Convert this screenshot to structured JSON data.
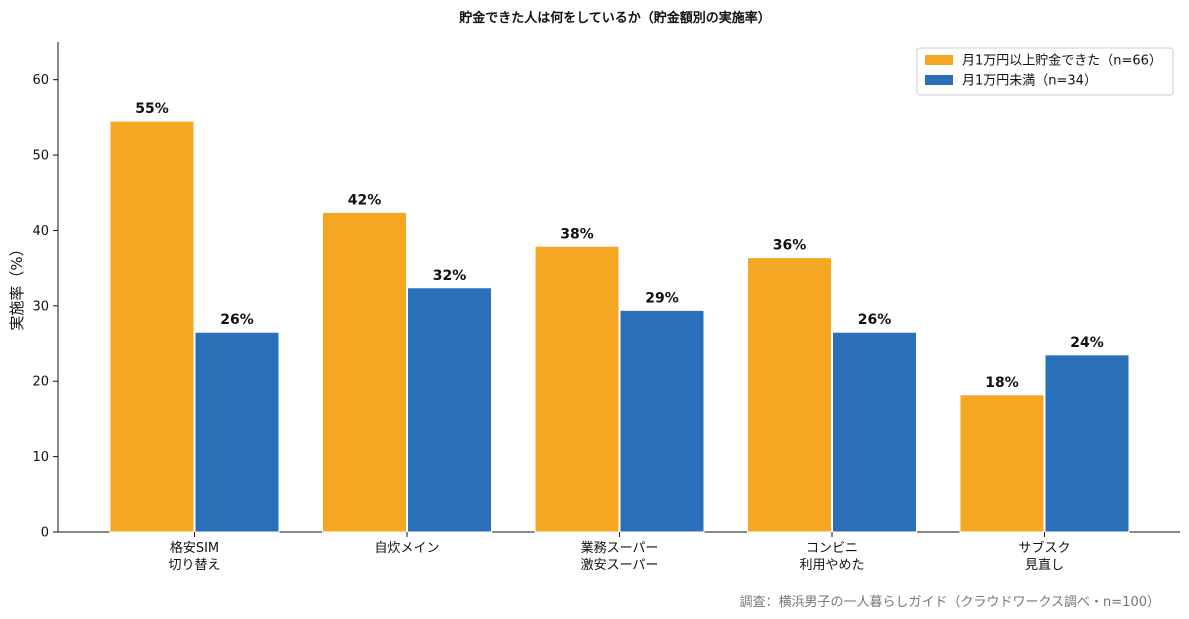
{
  "chart_data": {
    "type": "bar",
    "title": "貯金できた人は何をしているか（貯金額別の実施率）",
    "ylabel": "実施率（%）",
    "xlabel": "",
    "ylim": [
      0,
      65
    ],
    "yticks": [
      0,
      10,
      20,
      30,
      40,
      50,
      60
    ],
    "grid": false,
    "legend_position": "top-right",
    "categories": [
      [
        "格安SIM",
        "切り替え"
      ],
      [
        "自炊メイン"
      ],
      [
        "業務スーパー",
        "激安スーパー"
      ],
      [
        "コンビニ",
        "利用やめた"
      ],
      [
        "サブスク",
        "見直し"
      ]
    ],
    "series": [
      {
        "name": "月1万円以上貯金できた（n=66）",
        "color": "#F5A623",
        "values": [
          54.5,
          42.4,
          37.9,
          36.4,
          18.2
        ],
        "labels": [
          "55%",
          "42%",
          "38%",
          "36%",
          "18%"
        ]
      },
      {
        "name": "月1万円未満（n=34）",
        "color": "#2970B8",
        "values": [
          26.5,
          32.4,
          29.4,
          26.5,
          23.5
        ],
        "labels": [
          "26%",
          "32%",
          "29%",
          "26%",
          "24%"
        ]
      }
    ],
    "source": "調査：横浜男子の一人暮らしガイド（クラウドワークス調べ・n=100）"
  }
}
